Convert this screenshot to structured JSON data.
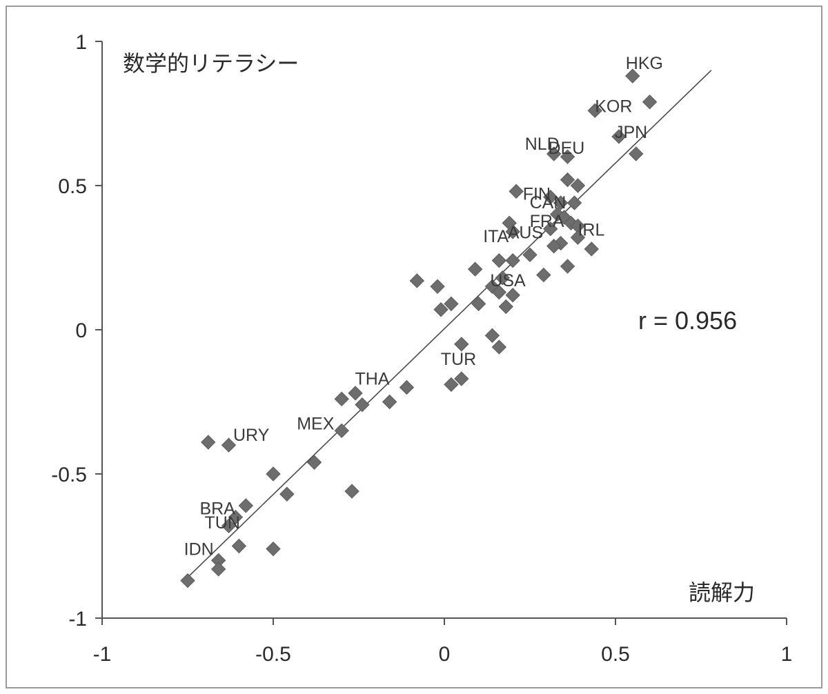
{
  "chart_data": {
    "type": "scatter",
    "ylabel": "数学的リテラシー",
    "xlabel": "読解力",
    "annotation": "r = 0.956",
    "xlim": [
      -1,
      1
    ],
    "ylim": [
      -1,
      1
    ],
    "x_ticks": [
      "-1",
      "-0.5",
      "0",
      "0.5",
      "1"
    ],
    "y_ticks": [
      "1",
      "0.5",
      "0",
      "-0.5",
      "-1"
    ],
    "grid": false,
    "marker": "diamond",
    "marker_color": "#6d6d6d",
    "trendline": {
      "x": [
        -0.76,
        0.78
      ],
      "y": [
        -0.87,
        0.9
      ]
    },
    "points": [
      {
        "x": 0.55,
        "y": 0.88,
        "label": "HKG"
      },
      {
        "x": 0.6,
        "y": 0.79
      },
      {
        "x": 0.44,
        "y": 0.76,
        "label": "KOR"
      },
      {
        "x": 0.51,
        "y": 0.67,
        "label": "JPN"
      },
      {
        "x": 0.56,
        "y": 0.61
      },
      {
        "x": 0.32,
        "y": 0.61,
        "label": "NLD"
      },
      {
        "x": 0.36,
        "y": 0.6,
        "label": "DEU"
      },
      {
        "x": 0.36,
        "y": 0.52
      },
      {
        "x": 0.39,
        "y": 0.5
      },
      {
        "x": 0.21,
        "y": 0.48
      },
      {
        "x": 0.31,
        "y": 0.46,
        "label": "FIN"
      },
      {
        "x": 0.34,
        "y": 0.44,
        "label": "CAN"
      },
      {
        "x": 0.38,
        "y": 0.44
      },
      {
        "x": 0.33,
        "y": 0.4
      },
      {
        "x": 0.35,
        "y": 0.39,
        "label": "FRA"
      },
      {
        "x": 0.37,
        "y": 0.37
      },
      {
        "x": 0.39,
        "y": 0.36,
        "label": "IRL"
      },
      {
        "x": 0.31,
        "y": 0.35,
        "label": "AUS"
      },
      {
        "x": 0.19,
        "y": 0.37
      },
      {
        "x": 0.2,
        "y": 0.34,
        "label": "ITA"
      },
      {
        "x": 0.39,
        "y": 0.32
      },
      {
        "x": 0.34,
        "y": 0.3
      },
      {
        "x": 0.32,
        "y": 0.29
      },
      {
        "x": 0.43,
        "y": 0.28
      },
      {
        "x": 0.25,
        "y": 0.26
      },
      {
        "x": 0.16,
        "y": 0.24
      },
      {
        "x": 0.2,
        "y": 0.24
      },
      {
        "x": 0.36,
        "y": 0.22
      },
      {
        "x": 0.09,
        "y": 0.21
      },
      {
        "x": 0.29,
        "y": 0.19
      },
      {
        "x": -0.08,
        "y": 0.17
      },
      {
        "x": -0.02,
        "y": 0.15
      },
      {
        "x": 0.17,
        "y": 0.18,
        "label": "USA"
      },
      {
        "x": 0.14,
        "y": 0.15
      },
      {
        "x": 0.16,
        "y": 0.13
      },
      {
        "x": 0.2,
        "y": 0.12
      },
      {
        "x": 0.1,
        "y": 0.09
      },
      {
        "x": 0.02,
        "y": 0.09
      },
      {
        "x": 0.18,
        "y": 0.08
      },
      {
        "x": -0.01,
        "y": 0.07
      },
      {
        "x": 0.14,
        "y": -0.02
      },
      {
        "x": 0.05,
        "y": -0.05,
        "label": "TUR"
      },
      {
        "x": 0.16,
        "y": -0.06
      },
      {
        "x": 0.05,
        "y": -0.17
      },
      {
        "x": 0.02,
        "y": -0.19
      },
      {
        "x": -0.11,
        "y": -0.2,
        "label": "THA"
      },
      {
        "x": -0.16,
        "y": -0.25
      },
      {
        "x": -0.24,
        "y": -0.26
      },
      {
        "x": -0.26,
        "y": -0.22
      },
      {
        "x": -0.3,
        "y": -0.24
      },
      {
        "x": -0.3,
        "y": -0.35,
        "label": "MEX"
      },
      {
        "x": -0.38,
        "y": -0.46
      },
      {
        "x": -0.5,
        "y": -0.5,
        "label": "URY"
      },
      {
        "x": -0.46,
        "y": -0.57
      },
      {
        "x": -0.27,
        "y": -0.56
      },
      {
        "x": -0.69,
        "y": -0.39
      },
      {
        "x": -0.63,
        "y": -0.4
      },
      {
        "x": -0.58,
        "y": -0.61
      },
      {
        "x": -0.61,
        "y": -0.65,
        "label": "BRA"
      },
      {
        "x": -0.63,
        "y": -0.68,
        "label": "TUN"
      },
      {
        "x": -0.6,
        "y": -0.75
      },
      {
        "x": -0.66,
        "y": -0.8,
        "label": "IDN"
      },
      {
        "x": -0.5,
        "y": -0.76
      },
      {
        "x": -0.66,
        "y": -0.83
      },
      {
        "x": -0.75,
        "y": -0.87
      }
    ]
  }
}
